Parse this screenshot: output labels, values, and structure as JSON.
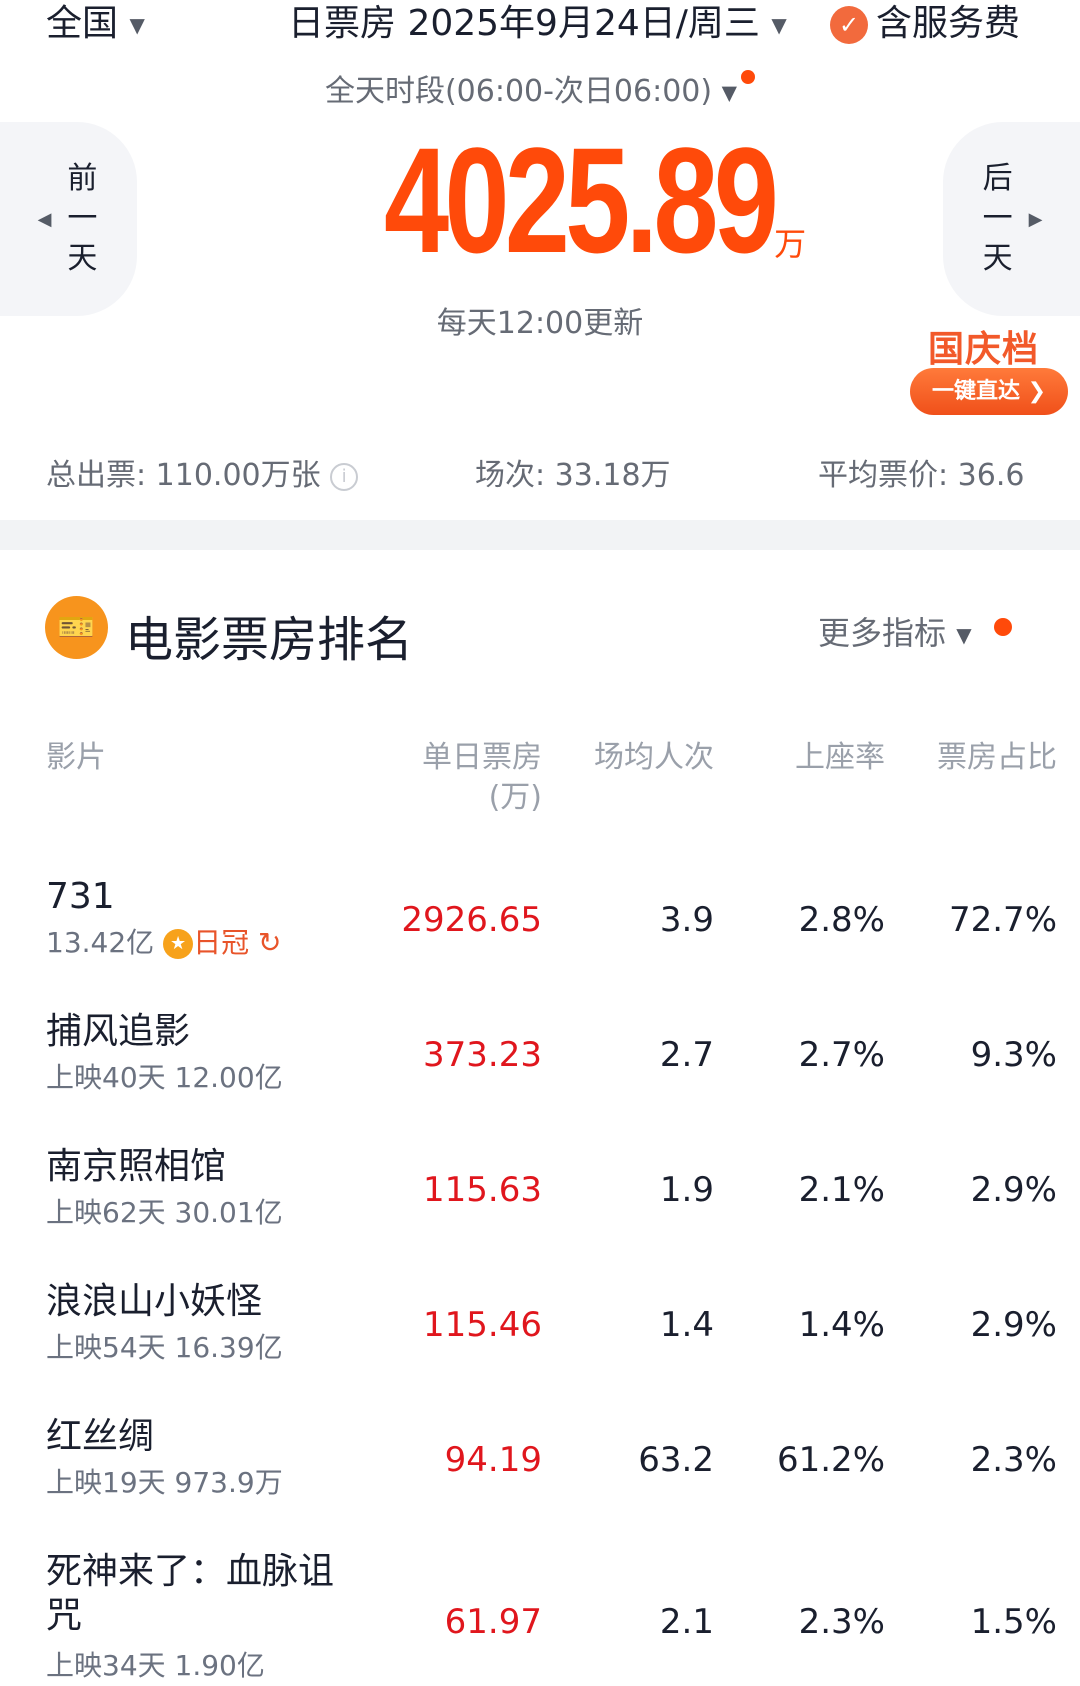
{
  "header": {
    "region": "全国",
    "date_title": "日票房 2025年9月24日/周三",
    "service_fee": "含服务费",
    "period": "全天时段(06:00-次日06:00)"
  },
  "nav": {
    "prev": [
      "前",
      "一",
      "天"
    ],
    "next": [
      "后",
      "一",
      "天"
    ]
  },
  "summary": {
    "box_office": "4025.89",
    "unit": "万",
    "update_note": "每天12:00更新"
  },
  "promo": {
    "title": "国庆档",
    "button": "一键直达"
  },
  "stats": {
    "tickets": "总出票: 110.00万张",
    "shows": "场次: 33.18万",
    "avg_price": "平均票价: 36.6"
  },
  "ranking": {
    "title": "电影票房排名",
    "more": "更多指标",
    "columns": {
      "film": "影片",
      "daily": "单日票房",
      "daily_unit": "(万)",
      "avg_people": "场均人次",
      "occupancy": "上座率",
      "share": "票房占比"
    },
    "rows": [
      {
        "title": "731",
        "sub": "13.42亿",
        "badge": "日冠",
        "daily": "2926.65",
        "avg": "3.9",
        "occ": "2.8%",
        "share": "72.7%"
      },
      {
        "title": "捕风追影",
        "sub": "上映40天 12.00亿",
        "daily": "373.23",
        "avg": "2.7",
        "occ": "2.7%",
        "share": "9.3%"
      },
      {
        "title": "南京照相馆",
        "sub": "上映62天 30.01亿",
        "daily": "115.63",
        "avg": "1.9",
        "occ": "2.1%",
        "share": "2.9%"
      },
      {
        "title": "浪浪山小妖怪",
        "sub": "上映54天 16.39亿",
        "daily": "115.46",
        "avg": "1.4",
        "occ": "1.4%",
        "share": "2.9%"
      },
      {
        "title": "红丝绸",
        "sub": "上映19天 973.9万",
        "daily": "94.19",
        "avg": "63.2",
        "occ": "61.2%",
        "share": "2.3%"
      },
      {
        "title": "死神来了：血脉诅咒",
        "sub": "上映34天 1.90亿",
        "daily": "61.97",
        "avg": "2.1",
        "occ": "2.3%",
        "share": "1.5%"
      }
    ]
  },
  "colors": {
    "accent": "#ff4a0a",
    "value_red": "#e0161d"
  }
}
